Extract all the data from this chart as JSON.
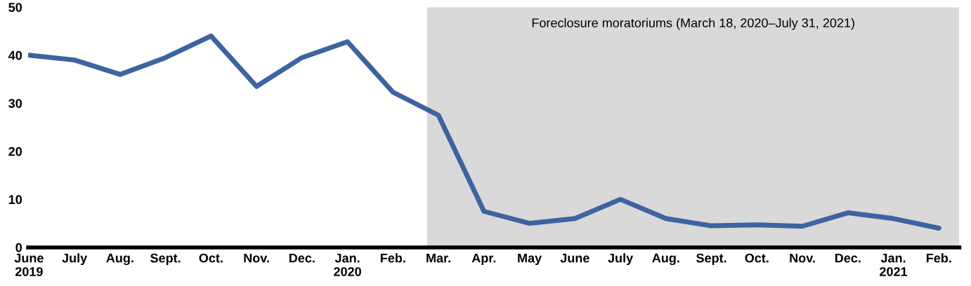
{
  "chart_data": {
    "type": "line",
    "categories": [
      "June\n2019",
      "July",
      "Aug.",
      "Sept.",
      "Oct.",
      "Nov.",
      "Dec.",
      "Jan.\n2020",
      "Feb.",
      "Mar.",
      "Apr.",
      "May",
      "June",
      "July",
      "Aug.",
      "Sept.",
      "Oct.",
      "Nov.",
      "Dec.",
      "Jan.\n2021",
      "Feb."
    ],
    "series": [
      {
        "color": "#3c64a0",
        "values": [
          40,
          39,
          36,
          39.5,
          44,
          33.5,
          39.5,
          42.8,
          32.3,
          27.5,
          7.5,
          5,
          6,
          10,
          6,
          4.5,
          4.7,
          4.4,
          7.2,
          6,
          4
        ]
      }
    ],
    "ylim": [
      0,
      50
    ],
    "yticks": [
      0,
      10,
      20,
      30,
      40,
      50
    ],
    "annotations": [
      "Foreclosure moratoriums (March 18, 2020–July 31, 2021)"
    ],
    "grid": false,
    "legend": false,
    "marker": "none",
    "line_style": "solid"
  }
}
